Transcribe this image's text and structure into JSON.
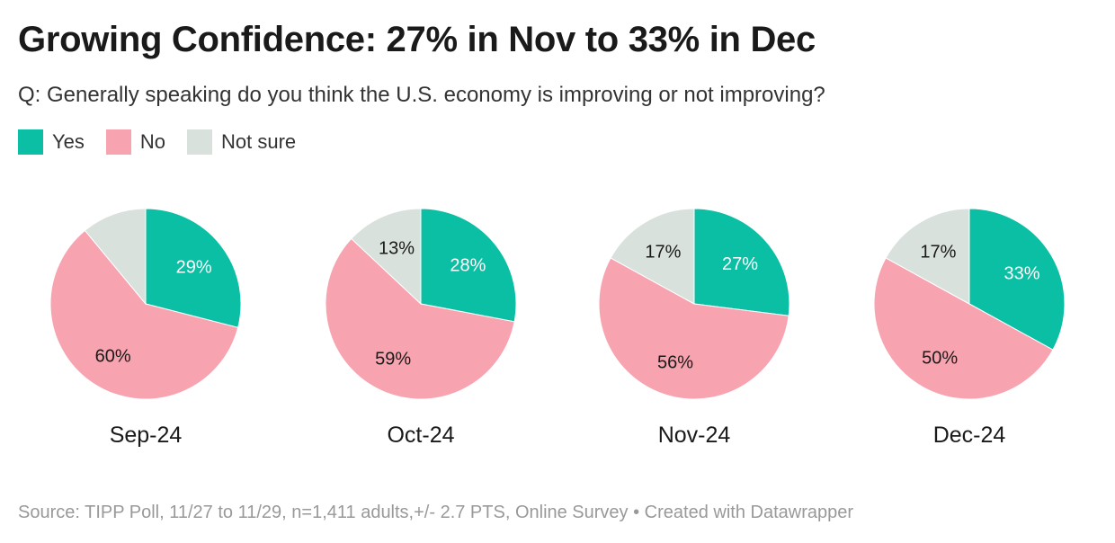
{
  "title": "Growing Confidence: 27% in Nov to 33% in Dec",
  "subtitle": "Q: Generally speaking do you think the U.S. economy is improving or not improving?",
  "legend": [
    {
      "label": "Yes",
      "color": "#0abfa3"
    },
    {
      "label": "No",
      "color": "#f7a4b0"
    },
    {
      "label": "Not sure",
      "color": "#d9e1dd"
    }
  ],
  "chart_data": {
    "type": "pie",
    "series_names": [
      "Yes",
      "No",
      "Not sure"
    ],
    "colors": [
      "#0abfa3",
      "#f7a4b0",
      "#d9e1dd"
    ],
    "label_colors": [
      "#ffffff",
      "#1a1a1a",
      "#1a1a1a"
    ],
    "pies": [
      {
        "title": "Sep-24",
        "values": [
          29,
          60,
          11
        ],
        "labels": [
          "29%",
          "60%",
          ""
        ]
      },
      {
        "title": "Oct-24",
        "values": [
          28,
          59,
          13
        ],
        "labels": [
          "28%",
          "59%",
          "13%"
        ]
      },
      {
        "title": "Nov-24",
        "values": [
          27,
          56,
          17
        ],
        "labels": [
          "27%",
          "56%",
          "17%"
        ]
      },
      {
        "title": "Dec-24",
        "values": [
          33,
          50,
          17
        ],
        "labels": [
          "33%",
          "50%",
          "17%"
        ]
      }
    ]
  },
  "source": "Source: TIPP Poll, 11/27 to 11/29, n=1,411 adults,+/- 2.7 PTS, Online Survey • Created with Datawrapper"
}
